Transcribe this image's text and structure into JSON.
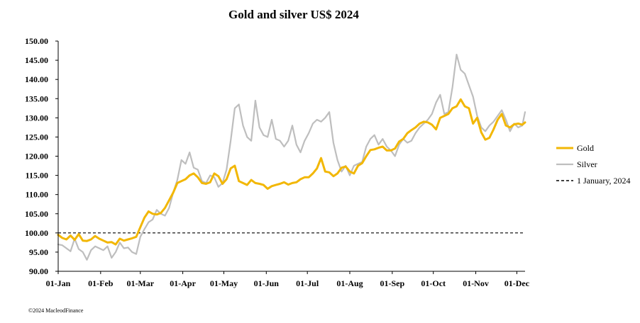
{
  "chart_data": {
    "type": "line",
    "title": "Gold and silver  US$ 2024",
    "xlabel": "",
    "ylabel": "",
    "ylim": [
      90,
      150
    ],
    "yticks": [
      "90.00",
      "95.00",
      "100.00",
      "105.00",
      "110.00",
      "115.00",
      "120.00",
      "125.00",
      "130.00",
      "135.00",
      "140.00",
      "145.00",
      "150.00"
    ],
    "x_tick_labels": [
      "01-Jan",
      "01-Feb",
      "01-Mar",
      "01-Apr",
      "01-May",
      "01-Jun",
      "01-Jul",
      "01-Aug",
      "01-Sep",
      "01-Oct",
      "01-Nov",
      "01-Dec"
    ],
    "x_tick_days": [
      0,
      31,
      60,
      91,
      121,
      152,
      182,
      213,
      244,
      274,
      305,
      335
    ],
    "xlim": [
      0,
      341
    ],
    "series": [
      {
        "name": "Gold",
        "color": "#F2B705",
        "x": [
          0,
          3,
          6,
          9,
          12,
          15,
          18,
          21,
          24,
          27,
          30,
          33,
          36,
          39,
          42,
          45,
          48,
          51,
          54,
          57,
          60,
          63,
          66,
          69,
          72,
          75,
          78,
          81,
          84,
          87,
          90,
          93,
          96,
          99,
          102,
          105,
          108,
          111,
          114,
          117,
          120,
          123,
          126,
          129,
          132,
          135,
          138,
          141,
          144,
          147,
          150,
          153,
          156,
          159,
          162,
          165,
          168,
          171,
          174,
          177,
          180,
          183,
          186,
          189,
          192,
          195,
          198,
          201,
          204,
          207,
          210,
          213,
          216,
          219,
          222,
          225,
          228,
          231,
          234,
          237,
          240,
          243,
          246,
          249,
          252,
          255,
          258,
          261,
          264,
          267,
          270,
          273,
          276,
          279,
          282,
          285,
          288,
          291,
          294,
          297,
          300,
          303,
          306,
          309,
          312,
          315,
          318,
          321,
          324,
          327,
          330,
          333,
          336,
          339,
          341
        ],
        "values": [
          99.5,
          98.7,
          98.3,
          99.3,
          98.2,
          99.7,
          98.0,
          97.9,
          98.3,
          99.2,
          98.5,
          98.0,
          97.5,
          97.6,
          97.0,
          98.5,
          98.0,
          98.3,
          98.6,
          99.0,
          101.5,
          104.0,
          105.6,
          105.0,
          104.8,
          105.2,
          106.5,
          108.5,
          110.5,
          113.0,
          113.5,
          114.0,
          115.0,
          115.5,
          114.5,
          113.0,
          112.8,
          113.2,
          115.5,
          114.8,
          112.8,
          114.0,
          116.8,
          117.5,
          113.5,
          113.0,
          112.5,
          113.8,
          113.0,
          112.8,
          112.5,
          111.5,
          112.2,
          112.5,
          112.8,
          113.2,
          112.6,
          113.0,
          113.2,
          114.0,
          114.5,
          114.5,
          115.5,
          116.8,
          119.5,
          116.0,
          115.8,
          114.8,
          115.5,
          117.0,
          117.3,
          116.0,
          115.5,
          117.5,
          118.2,
          120.0,
          121.6,
          121.8,
          122.2,
          122.5,
          121.5,
          121.5,
          122.0,
          123.8,
          124.5,
          126.0,
          126.8,
          127.5,
          128.5,
          129.0,
          128.8,
          128.2,
          127.0,
          130.0,
          130.5,
          131.0,
          132.5,
          133.0,
          134.8,
          133.0,
          132.5,
          128.5,
          130.0,
          126.2,
          124.3,
          124.8,
          127.0,
          129.5,
          131.0,
          128.0,
          127.5,
          128.3,
          128.5,
          128.2,
          128.8
        ]
      },
      {
        "name": "Silver",
        "color": "#BEBEBE",
        "x": [
          0,
          3,
          6,
          9,
          12,
          15,
          18,
          21,
          24,
          27,
          30,
          33,
          36,
          39,
          42,
          45,
          48,
          51,
          54,
          57,
          60,
          63,
          66,
          69,
          72,
          75,
          78,
          81,
          84,
          87,
          90,
          93,
          96,
          99,
          102,
          105,
          108,
          111,
          114,
          117,
          120,
          123,
          126,
          129,
          132,
          135,
          138,
          141,
          144,
          147,
          150,
          153,
          156,
          159,
          162,
          165,
          168,
          171,
          174,
          177,
          180,
          183,
          186,
          189,
          192,
          195,
          198,
          201,
          204,
          207,
          210,
          213,
          216,
          219,
          222,
          225,
          228,
          231,
          234,
          237,
          240,
          243,
          246,
          249,
          252,
          255,
          258,
          261,
          264,
          267,
          270,
          273,
          276,
          279,
          282,
          285,
          288,
          291,
          294,
          297,
          300,
          303,
          306,
          309,
          312,
          315,
          318,
          321,
          324,
          327,
          330,
          333,
          336,
          339,
          341
        ],
        "values": [
          97.0,
          96.8,
          96.0,
          95.2,
          98.5,
          95.8,
          95.0,
          93.0,
          95.5,
          96.5,
          96.0,
          95.5,
          96.5,
          93.5,
          95.0,
          97.5,
          96.0,
          96.2,
          95.0,
          94.5,
          99.0,
          101.0,
          102.8,
          103.5,
          106.0,
          105.0,
          104.5,
          106.5,
          110.5,
          113.8,
          119.0,
          118.0,
          121.0,
          117.0,
          116.5,
          113.5,
          113.0,
          115.0,
          114.5,
          112.0,
          113.0,
          116.5,
          124.0,
          132.5,
          133.5,
          128.0,
          125.0,
          124.0,
          134.5,
          127.5,
          125.5,
          125.0,
          129.5,
          124.5,
          124.0,
          122.5,
          124.0,
          128.0,
          123.0,
          121.0,
          124.0,
          126.0,
          128.5,
          129.5,
          129.0,
          130.0,
          131.5,
          123.5,
          119.0,
          116.0,
          117.5,
          115.0,
          117.5,
          118.0,
          118.5,
          122.5,
          124.5,
          125.5,
          123.0,
          124.5,
          122.5,
          121.5,
          120.0,
          123.0,
          124.5,
          123.5,
          124.0,
          126.0,
          127.5,
          128.5,
          129.5,
          131.0,
          134.0,
          136.0,
          131.0,
          131.5,
          138.0,
          146.5,
          142.5,
          141.5,
          138.5,
          135.5,
          130.5,
          127.5,
          126.5,
          128.0,
          129.0,
          130.5,
          132.0,
          129.5,
          126.5,
          128.5,
          127.5,
          128.0,
          131.5
        ]
      },
      {
        "name": "1 January, 2024",
        "color": "#000000",
        "dashed": true,
        "x": [
          0,
          341
        ],
        "values": [
          100,
          100
        ]
      }
    ],
    "legend": [
      "Gold",
      "Silver",
      "1 January, 2024"
    ],
    "legend_position": "right"
  },
  "footer": {
    "copyright": "©2024 MacleodFinance"
  }
}
